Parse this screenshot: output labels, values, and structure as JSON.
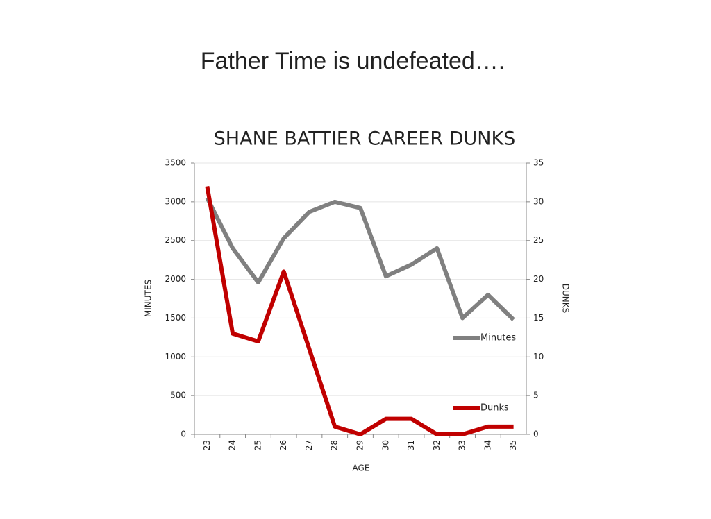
{
  "title": "Father Time is undefeated….",
  "chart_data": {
    "type": "line",
    "title": "SHANE BATTIER CAREER DUNKS",
    "x_label": "AGE",
    "y_label": "MINUTES",
    "y2_label": "DUNKS",
    "categories": [
      23,
      24,
      25,
      26,
      27,
      28,
      29,
      30,
      31,
      32,
      33,
      34,
      35
    ],
    "series": [
      {
        "name": "Minutes",
        "color": "#808080",
        "values": [
          3050,
          2400,
          1960,
          2530,
          2870,
          3000,
          2920,
          2040,
          2190,
          2400,
          1500,
          1800,
          1480
        ]
      },
      {
        "name": "Dunks",
        "color": "#c00000",
        "axis": "y2",
        "values": [
          32,
          13,
          12,
          21,
          11,
          1,
          0,
          2,
          2,
          0,
          0,
          1,
          1
        ]
      }
    ],
    "ylim": [
      0,
      3500
    ],
    "yticks": [
      0,
      500,
      1000,
      1500,
      2000,
      2500,
      3000,
      3500
    ],
    "y2lim": [
      0,
      35
    ],
    "y2ticks": [
      0,
      5,
      10,
      15,
      20,
      25,
      30,
      35
    ],
    "grid": true,
    "legend": "right"
  }
}
